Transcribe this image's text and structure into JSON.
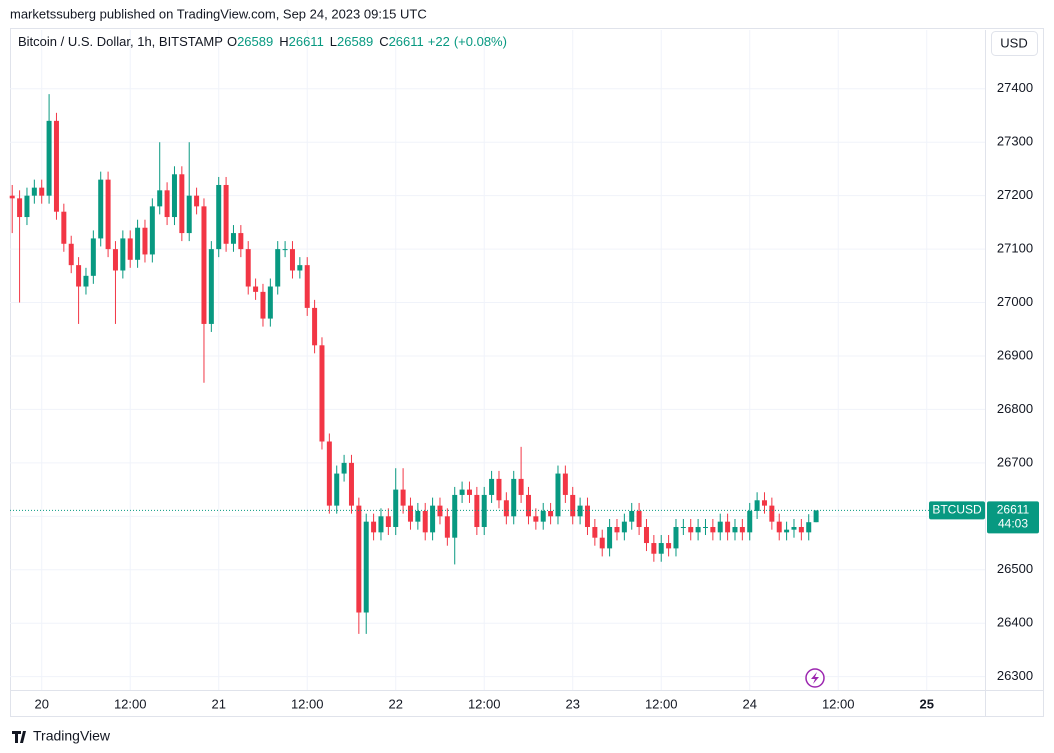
{
  "header": {
    "published": "marketssuberg published on TradingView.com, Sep 24, 2023 09:15 UTC",
    "symbol": "Bitcoin / U.S. Dollar, 1h, BITSTAMP",
    "ohlc": [
      {
        "label": "O",
        "value": 26589
      },
      {
        "label": "H",
        "value": 26611
      },
      {
        "label": "L",
        "value": 26589
      },
      {
        "label": "C",
        "value": 26611
      }
    ],
    "change": "+22",
    "change_pct": "(+0.08%)",
    "currency": "USD"
  },
  "footer": {
    "brand": "TradingView"
  },
  "chart_data": {
    "type": "candlestick",
    "up_color": "#089981",
    "down_color": "#f23645",
    "grid": true,
    "price_tag": {
      "symbol": "BTCUSD",
      "countdown": "44:03"
    },
    "ylim": [
      26275,
      27510
    ],
    "yticks": [
      26300,
      26400,
      26500,
      26600,
      26700,
      26800,
      26900,
      27000,
      27100,
      27200,
      27300,
      27400
    ],
    "xlim": [
      -4.3,
      127.9
    ],
    "xticks": [
      {
        "value": 0,
        "label": "20"
      },
      {
        "value": 12,
        "label": "12:00"
      },
      {
        "value": 24,
        "label": "21"
      },
      {
        "value": 36,
        "label": "12:00"
      },
      {
        "value": 48,
        "label": "22"
      },
      {
        "value": 60,
        "label": "12:00"
      },
      {
        "value": 72,
        "label": "23"
      },
      {
        "value": 84,
        "label": "12:00"
      },
      {
        "value": 96,
        "label": "24"
      },
      {
        "value": 108,
        "label": "12:00"
      },
      {
        "value": 120,
        "label": "25"
      }
    ],
    "x": [
      -4,
      -3,
      -2,
      -1,
      0,
      1,
      2,
      3,
      4,
      5,
      6,
      7,
      8,
      9,
      10,
      11,
      12,
      13,
      14,
      15,
      16,
      17,
      18,
      19,
      20,
      21,
      22,
      23,
      24,
      25,
      26,
      27,
      28,
      29,
      30,
      31,
      32,
      33,
      34,
      35,
      36,
      37,
      38,
      39,
      40,
      41,
      42,
      43,
      44,
      45,
      46,
      47,
      48,
      49,
      50,
      51,
      52,
      53,
      54,
      55,
      56,
      57,
      58,
      59,
      60,
      61,
      62,
      63,
      64,
      65,
      66,
      67,
      68,
      69,
      70,
      71,
      72,
      73,
      74,
      75,
      76,
      77,
      78,
      79,
      80,
      81,
      82,
      83,
      84,
      85,
      86,
      87,
      88,
      89,
      90,
      91,
      92,
      93,
      94,
      95,
      96,
      97,
      98,
      99,
      100,
      101,
      102,
      103,
      104,
      105
    ],
    "open": [
      27200,
      27195,
      27160,
      27200,
      27215,
      27200,
      27340,
      27170,
      27110,
      27070,
      27030,
      27050,
      27120,
      27230,
      27100,
      27060,
      27120,
      27080,
      27140,
      27090,
      27180,
      27210,
      27160,
      27240,
      27130,
      27200,
      27180,
      26960,
      27100,
      27220,
      27110,
      27130,
      27100,
      27030,
      27020,
      26970,
      27030,
      27100,
      27100,
      27060,
      27070,
      26990,
      26920,
      26740,
      26620,
      26680,
      26700,
      26620,
      26420,
      26590,
      26570,
      26600,
      26580,
      26650,
      26620,
      26590,
      26610,
      26570,
      26620,
      26600,
      26560,
      26640,
      26650,
      26640,
      26580,
      26640,
      26670,
      26630,
      26600,
      26670,
      26640,
      26600,
      26590,
      26610,
      26600,
      26680,
      26640,
      26600,
      26620,
      26580,
      26560,
      26540,
      26580,
      26570,
      26590,
      26610,
      26580,
      26550,
      26530,
      26550,
      26540,
      26580,
      26580,
      26570,
      26580,
      26580,
      26570,
      26590,
      26570,
      26580,
      26570,
      26610,
      26630,
      26620,
      26590,
      26570,
      26575,
      26580,
      26570,
      26589
    ],
    "high": [
      27220,
      27210,
      27215,
      27230,
      27230,
      27390,
      27355,
      27185,
      27125,
      27085,
      27065,
      27135,
      27245,
      27245,
      27115,
      27135,
      27135,
      27155,
      27155,
      27195,
      27300,
      27225,
      27255,
      27255,
      27300,
      27215,
      27195,
      27115,
      27235,
      27235,
      27145,
      27145,
      27115,
      27045,
      27035,
      27045,
      27115,
      27115,
      27115,
      27085,
      27085,
      27005,
      26935,
      26755,
      26695,
      26715,
      26715,
      26635,
      26605,
      26605,
      26615,
      26615,
      26690,
      26690,
      26635,
      26625,
      26625,
      26635,
      26635,
      26615,
      26655,
      26665,
      26665,
      26655,
      26655,
      26685,
      26685,
      26645,
      26685,
      26730,
      26655,
      26615,
      26625,
      26625,
      26695,
      26695,
      26655,
      26635,
      26635,
      26595,
      26575,
      26595,
      26595,
      26605,
      26625,
      26625,
      26595,
      26565,
      26565,
      26565,
      26595,
      26595,
      26595,
      26595,
      26595,
      26595,
      26605,
      26605,
      26595,
      26595,
      26625,
      26645,
      26645,
      26635,
      26605,
      26590,
      26595,
      26595,
      26604,
      26611
    ],
    "low": [
      27130,
      27000,
      27145,
      27185,
      27185,
      27185,
      27155,
      27095,
      27055,
      26960,
      27015,
      27035,
      27105,
      27085,
      26960,
      27045,
      27065,
      27065,
      27075,
      27075,
      27165,
      27145,
      27145,
      27115,
      27115,
      27165,
      26850,
      26945,
      27085,
      27095,
      27095,
      27085,
      27015,
      27005,
      26955,
      26955,
      27015,
      27085,
      27045,
      27045,
      26975,
      26905,
      26725,
      26605,
      26605,
      26665,
      26605,
      26380,
      26380,
      26555,
      26555,
      26565,
      26565,
      26605,
      26575,
      26575,
      26555,
      26555,
      26585,
      26545,
      26510,
      26625,
      26625,
      26565,
      26565,
      26625,
      26615,
      26585,
      26585,
      26625,
      26585,
      26575,
      26575,
      26585,
      26585,
      26625,
      26585,
      26585,
      26565,
      26545,
      26525,
      26525,
      26555,
      26555,
      26575,
      26565,
      26535,
      26515,
      26515,
      26525,
      26525,
      26565,
      26555,
      26555,
      26565,
      26555,
      26555,
      26555,
      26555,
      26555,
      26555,
      26595,
      26605,
      26575,
      26555,
      26555,
      26560,
      26555,
      26555,
      26589
    ],
    "close": [
      27195,
      27160,
      27200,
      27215,
      27200,
      27340,
      27170,
      27110,
      27070,
      27030,
      27050,
      27120,
      27230,
      27100,
      27060,
      27120,
      27080,
      27140,
      27090,
      27180,
      27210,
      27160,
      27240,
      27130,
      27200,
      27180,
      26960,
      27100,
      27220,
      27110,
      27130,
      27100,
      27030,
      27020,
      26970,
      27030,
      27100,
      27100,
      27060,
      27070,
      26990,
      26920,
      26740,
      26620,
      26680,
      26700,
      26620,
      26420,
      26590,
      26570,
      26600,
      26580,
      26650,
      26620,
      26590,
      26610,
      26570,
      26620,
      26600,
      26560,
      26640,
      26650,
      26640,
      26580,
      26640,
      26670,
      26630,
      26600,
      26670,
      26640,
      26600,
      26590,
      26610,
      26600,
      26680,
      26640,
      26600,
      26620,
      26580,
      26560,
      26540,
      26580,
      26570,
      26590,
      26610,
      26580,
      26550,
      26530,
      26550,
      26540,
      26580,
      26580,
      26570,
      26580,
      26580,
      26570,
      26590,
      26570,
      26580,
      26570,
      26610,
      26630,
      26620,
      26590,
      26570,
      26575,
      26580,
      26570,
      26589,
      26611
    ]
  }
}
